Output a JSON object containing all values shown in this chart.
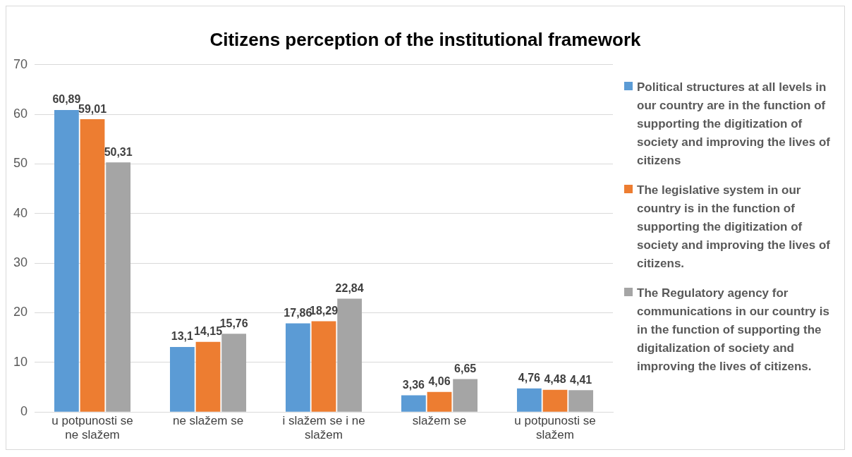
{
  "chart_data": {
    "type": "bar",
    "title": "Citizens perception of the institutional framework",
    "categories": [
      "u potpunosti se ne slažem",
      "ne slažem se",
      "i slažem se i ne slažem",
      "slažem se",
      "u potpunosti se slažem"
    ],
    "series": [
      {
        "name": "Political structures at all levels in our country are in the function of supporting the digitization of society and improving the lives of citizens",
        "color": "#5b9bd5",
        "values": [
          60.89,
          13.1,
          17.86,
          3.36,
          4.76
        ],
        "value_labels": [
          "60,89",
          "13,1",
          "17,86",
          "3,36",
          "4,76"
        ]
      },
      {
        "name": "The legislative system in our country is in the function of supporting the digitization of society and improving the lives of citizens.",
        "color": "#ed7d31",
        "values": [
          59.01,
          14.15,
          18.29,
          4.06,
          4.48
        ],
        "value_labels": [
          "59,01",
          "14,15",
          "18,29",
          "4,06",
          "4,48"
        ]
      },
      {
        "name": "The Regulatory agency for communications in our country is in the function of supporting the digitalization of society and improving the lives of citizens.",
        "color": "#a5a5a5",
        "values": [
          50.31,
          15.76,
          22.84,
          6.65,
          4.41
        ],
        "value_labels": [
          "50,31",
          "15,76",
          "22,84",
          "6,65",
          "4,41"
        ]
      }
    ],
    "ylim": [
      0,
      70
    ],
    "yticks": [
      0,
      10,
      20,
      30,
      40,
      50,
      60,
      70
    ],
    "grid": "y",
    "legend": "right"
  }
}
